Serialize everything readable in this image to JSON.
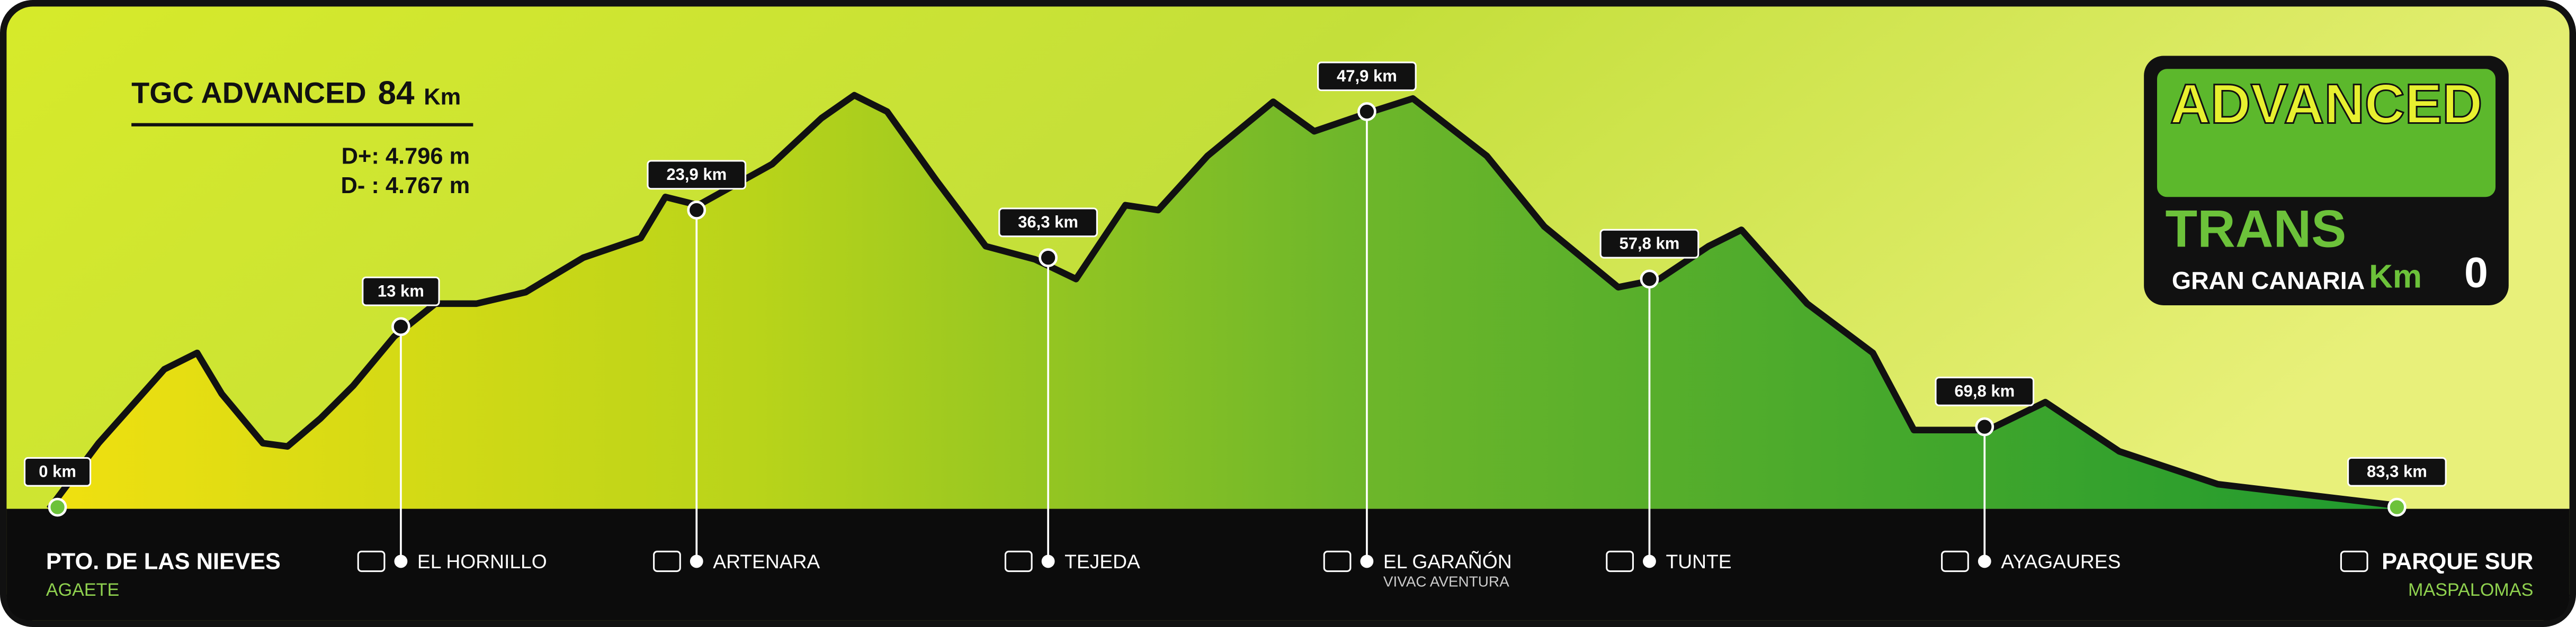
{
  "header": {
    "title": "TGC ADVANCED",
    "distance": "84",
    "unit": "Km",
    "d_plus": "D+: 4.796 m",
    "d_minus": "D- : 4.767 m"
  },
  "logo": {
    "title": "ADVANCED",
    "brand": "TRANS",
    "region": "GRAN CANARIA",
    "km": "Km",
    "zero": "0"
  },
  "checkpoints": [
    {
      "km": "0 km",
      "name": "PTO. DE LAS NIEVES",
      "sub": "AGAETE"
    },
    {
      "km": "13 km",
      "name": "EL HORNILLO"
    },
    {
      "km": "23,9 km",
      "name": "ARTENARA"
    },
    {
      "km": "36,3 km",
      "name": "TEJEDA"
    },
    {
      "km": "47,9 km",
      "name": "EL GARAÑÓN",
      "sub": "VIVAC AVENTURA"
    },
    {
      "km": "57,8 km",
      "name": "TUNTE"
    },
    {
      "km": "69,8 km",
      "name": "AYAGAURES"
    },
    {
      "km": "83,3 km",
      "name": "PARQUE SUR",
      "sub": "MASPALOMAS"
    }
  ]
}
